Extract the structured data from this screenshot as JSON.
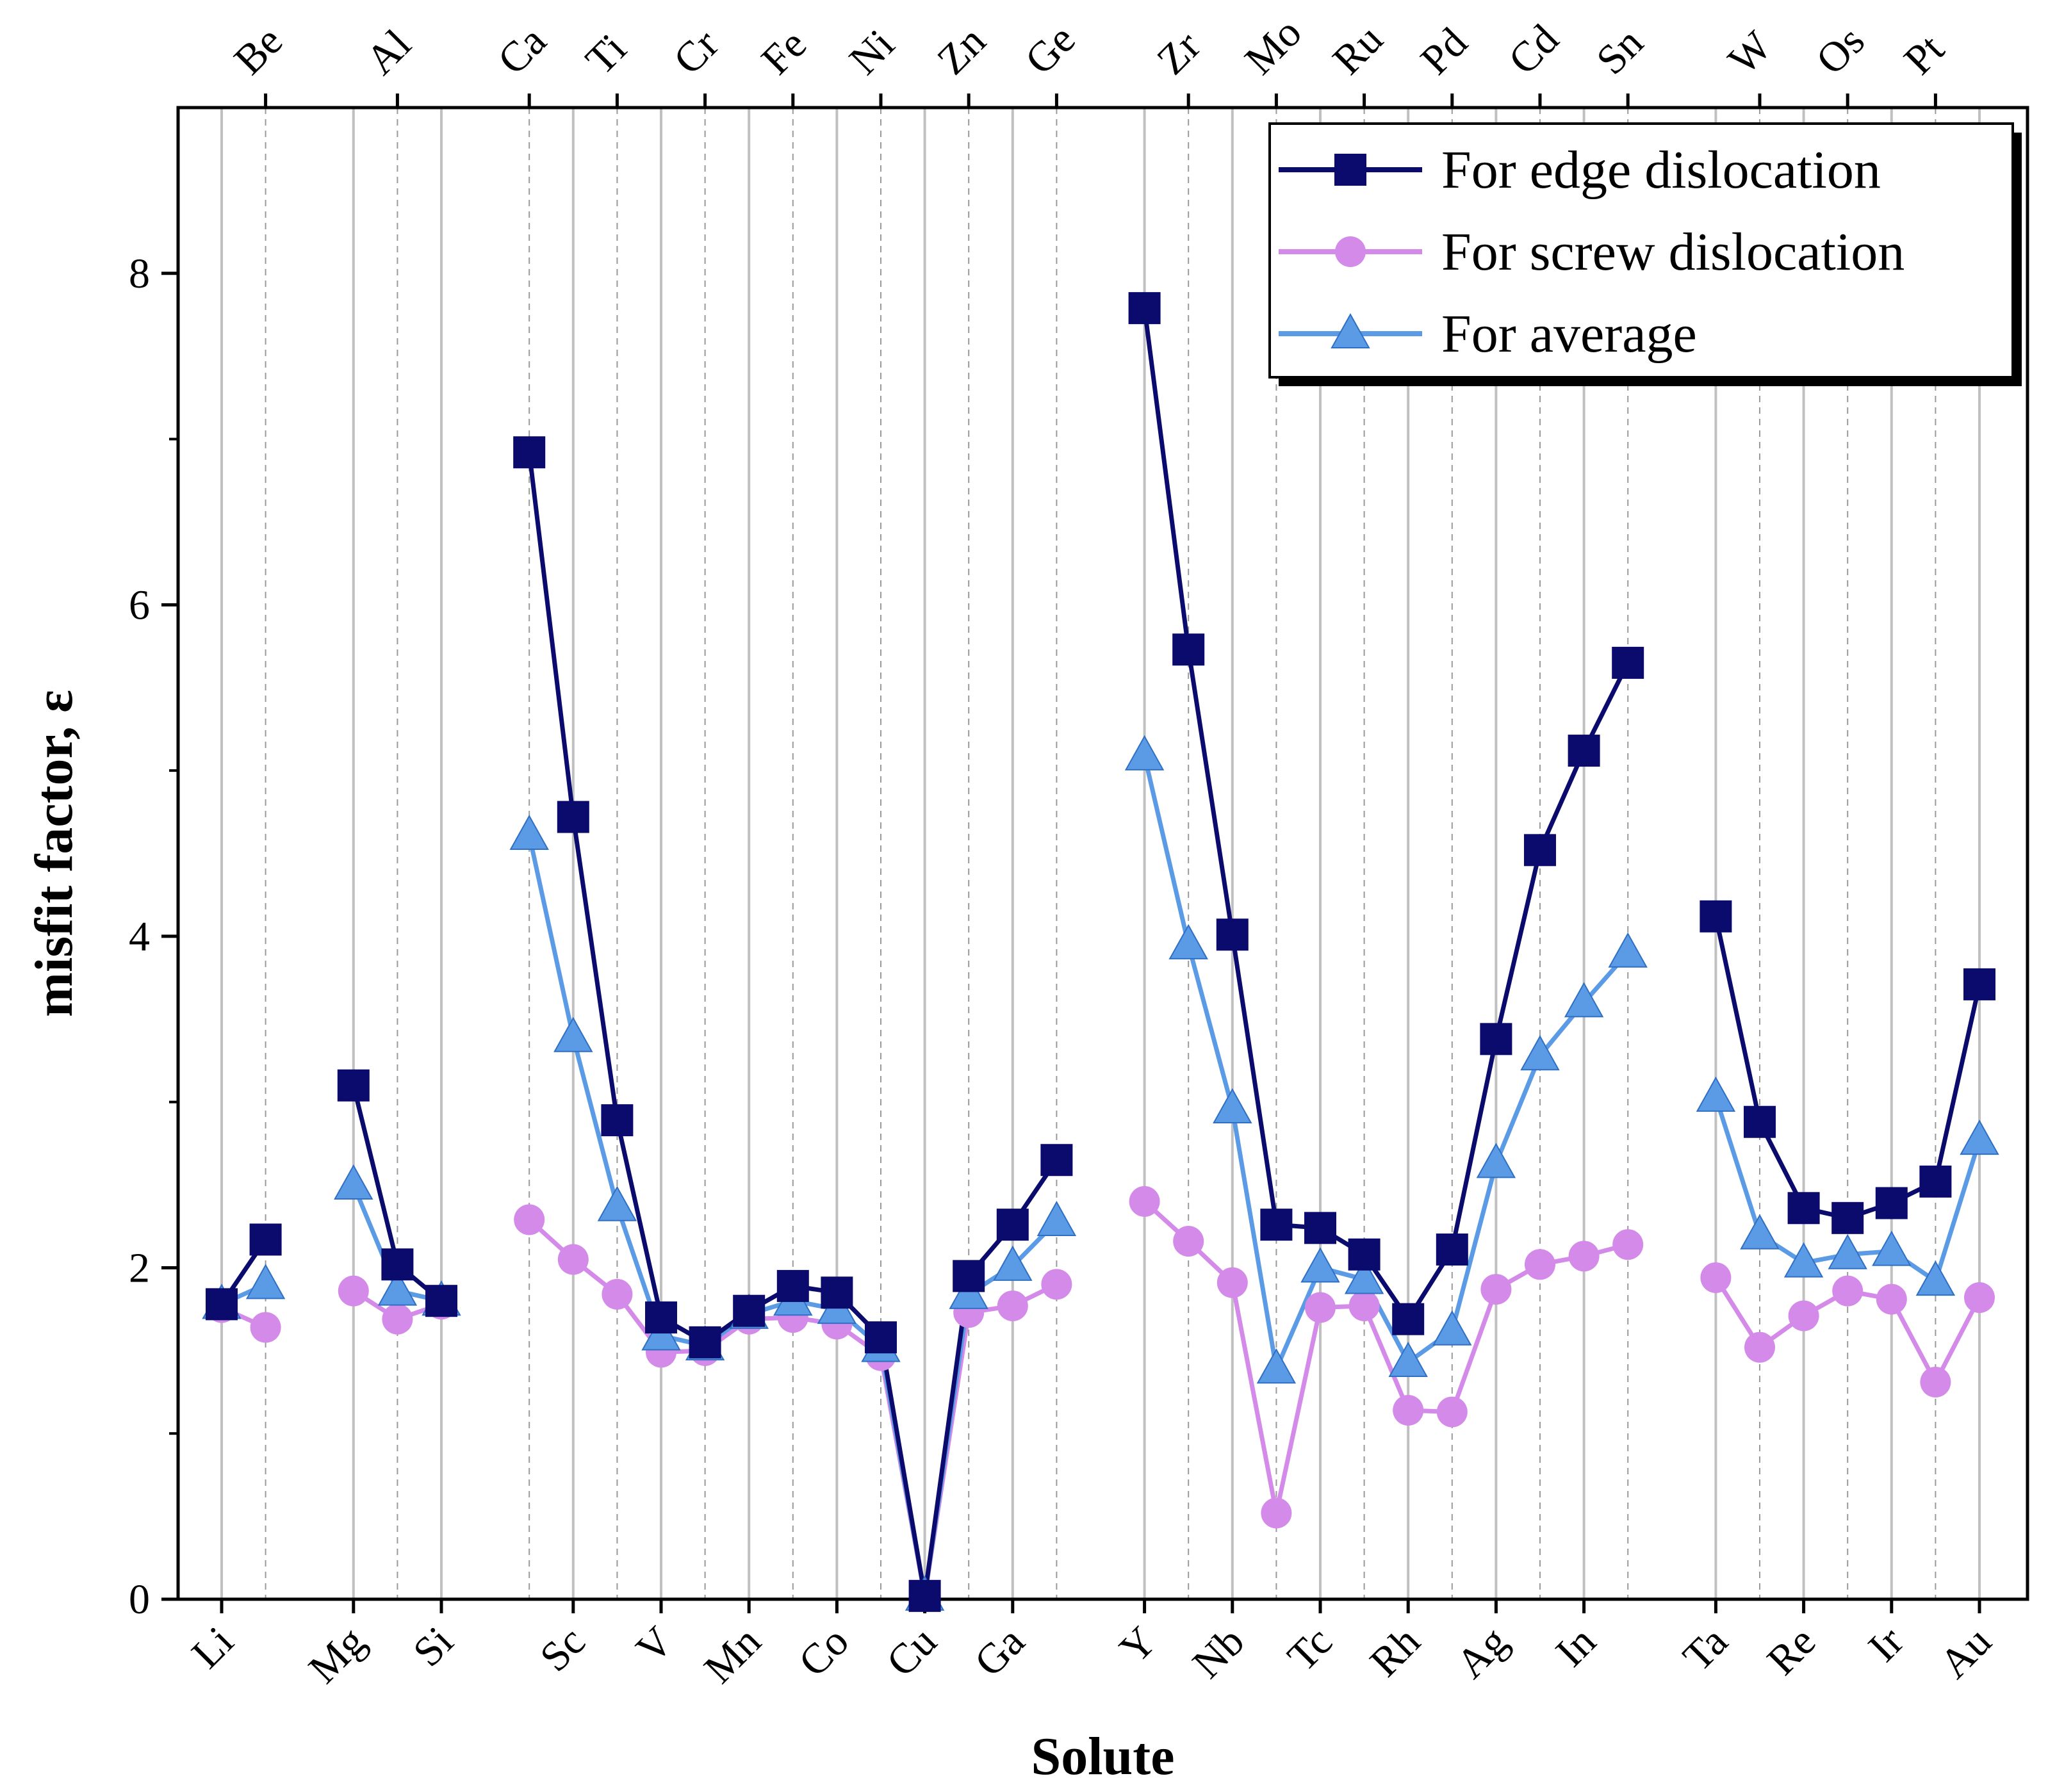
{
  "chart_data": {
    "type": "line",
    "title": "",
    "xlabel": "Solute",
    "ylabel": "misfit factor, ε",
    "ylim": [
      0,
      9
    ],
    "yticks": [
      0,
      2,
      4,
      6,
      8
    ],
    "grid": true,
    "legend_position": "top-right",
    "series_colors": {
      "edge": "#0b0b6e",
      "screw": "#d48ae8",
      "average": "#5b9be6"
    },
    "groups": [
      {
        "elements": [
          "Li",
          "Be"
        ],
        "edge": [
          1.78,
          2.17
        ],
        "screw": [
          1.76,
          1.64
        ],
        "average": [
          1.78,
          1.9
        ]
      },
      {
        "elements": [
          "Mg",
          "Al",
          "Si"
        ],
        "edge": [
          3.1,
          2.02,
          1.8
        ],
        "screw": [
          1.86,
          1.69,
          1.78
        ],
        "average": [
          2.5,
          1.86,
          1.8
        ]
      },
      {
        "elements": [
          "Ca",
          "Sc",
          "Ti",
          "V",
          "Cr",
          "Mn",
          "Fe",
          "Co",
          "Ni",
          "Cu",
          "Zn",
          "Ga",
          "Ge"
        ],
        "edge": [
          6.92,
          4.72,
          2.89,
          1.7,
          1.55,
          1.74,
          1.89,
          1.85,
          1.58,
          0.02,
          1.95,
          2.26,
          2.65
        ],
        "screw": [
          2.29,
          2.05,
          1.84,
          1.49,
          1.5,
          1.69,
          1.7,
          1.66,
          1.47,
          0.02,
          1.73,
          1.77,
          1.9
        ],
        "average": [
          4.61,
          3.39,
          2.37,
          1.59,
          1.53,
          1.72,
          1.8,
          1.75,
          1.52,
          0.02,
          1.84,
          2.01,
          2.28
        ]
      },
      {
        "elements": [
          "Y",
          "Zr",
          "Nb",
          "Mo",
          "Tc",
          "Ru",
          "Rh",
          "Pd",
          "Ag",
          "Cd",
          "In",
          "Sn"
        ],
        "edge": [
          7.79,
          5.73,
          4.01,
          2.26,
          2.24,
          2.08,
          1.69,
          2.11,
          3.38,
          4.52,
          5.12,
          5.65
        ],
        "screw": [
          2.4,
          2.16,
          1.91,
          0.52,
          1.76,
          1.77,
          1.14,
          1.13,
          1.87,
          2.02,
          2.07,
          2.14
        ],
        "average": [
          5.09,
          3.95,
          2.96,
          1.39,
          2.0,
          1.93,
          1.43,
          1.62,
          2.63,
          3.28,
          3.6,
          3.9
        ]
      },
      {
        "elements": [
          "Ta",
          "W",
          "Re",
          "Os",
          "Ir",
          "Pt",
          "Au"
        ],
        "edge": [
          4.12,
          2.88,
          2.36,
          2.3,
          2.39,
          2.52,
          3.71
        ],
        "screw": [
          1.94,
          1.52,
          1.71,
          1.86,
          1.81,
          1.31,
          1.82
        ],
        "average": [
          3.03,
          2.2,
          2.03,
          2.08,
          2.1,
          1.92,
          2.77
        ]
      }
    ],
    "bottom_axis_labels": [
      "Li",
      "Mg",
      "Si",
      "Sc",
      "V",
      "Mn",
      "Co",
      "Cu",
      "Ga",
      "Y",
      "Nb",
      "Tc",
      "Rh",
      "Ag",
      "In",
      "Ta",
      "Re",
      "Ir",
      "Au"
    ],
    "top_axis_labels": [
      "Be",
      "Al",
      "Ca",
      "Ti",
      "Cr",
      "Fe",
      "Ni",
      "Zn",
      "Ge",
      "Zr",
      "Mo",
      "Ru",
      "Pd",
      "Cd",
      "Sn",
      "W",
      "Os",
      "Pt"
    ],
    "legend": [
      {
        "key": "edge",
        "label": "For edge dislocation",
        "marker": "square"
      },
      {
        "key": "screw",
        "label": "For screw dislocation",
        "marker": "circle"
      },
      {
        "key": "average",
        "label": "For average",
        "marker": "triangle"
      }
    ]
  }
}
